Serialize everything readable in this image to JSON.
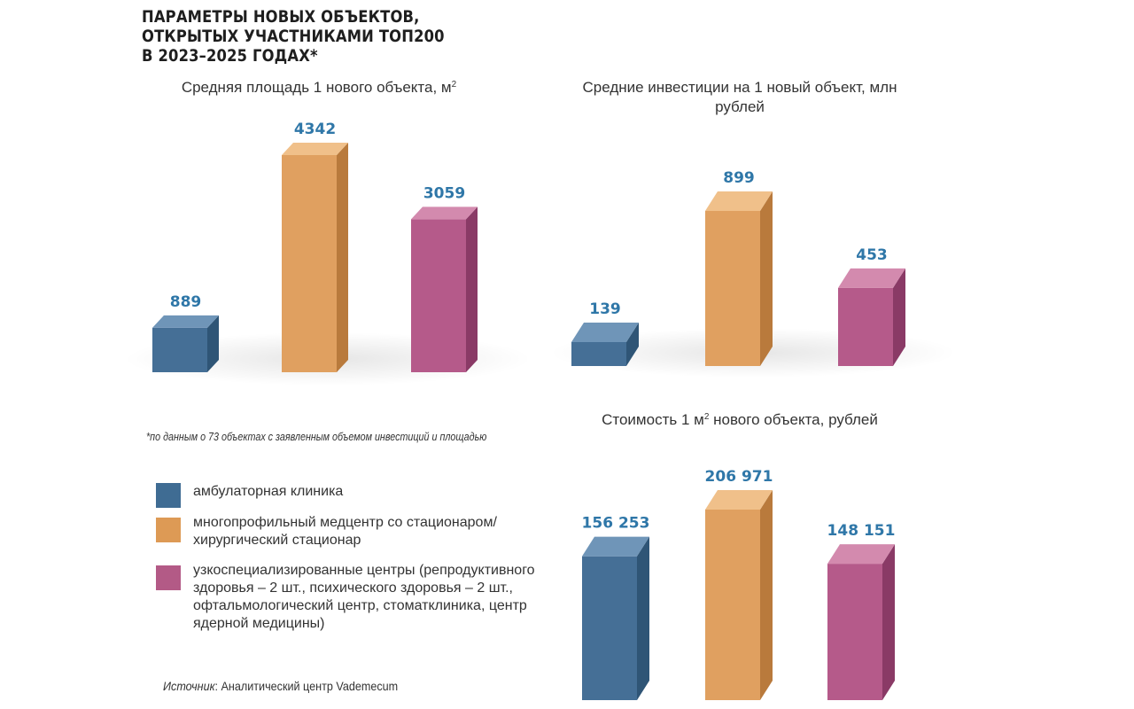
{
  "title_lines": [
    "ПАРАМЕТРЫ НОВЫХ ОБЪЕКТОВ,",
    "ОТКРЫТЫХ УЧАСТНИКАМИ ТОП200",
    "В 2023–2025 ГОДАХ*"
  ],
  "footnote": "*по данным о 73 объектах с заявленным объемом инвестиций и площадью",
  "source": {
    "label": "Источник",
    "text": ": Аналитический центр Vademecum"
  },
  "legend": [
    {
      "label": "амбулаторная клиника",
      "color": "#3f6c93"
    },
    {
      "label": "многопрофильный медцентр со стационаром/ хирургический стационар",
      "color": "#dd9a55"
    },
    {
      "label": "узкоспециализированные центры (репродуктивного здоровья – 2 шт., психического здоровья – 2 шт., офтальмологический центр, стоматклиника, центр ядерной медицины)",
      "color": "#b35a86"
    }
  ],
  "colors": {
    "ambulatory": {
      "front": "#456f96",
      "side": "#2f5576",
      "top": "#6f95b8"
    },
    "multi": {
      "front": "#e0a060",
      "side": "#b97a3c",
      "top": "#f0c08a"
    },
    "special": {
      "front": "#b55a8a",
      "side": "#8a3a66",
      "top": "#d38aae"
    }
  },
  "chart_data": [
    {
      "type": "bar",
      "title": "Средняя площадь 1 нового объекта, м",
      "title_sup": "2",
      "categories": [
        "амбулаторная клиника",
        "многопрофильный медцентр со стационаром/ хирургический стационар",
        "узкоспециализированные центры"
      ],
      "values": [
        889,
        4342,
        3059
      ],
      "value_labels": [
        "889",
        "4342",
        "3059"
      ]
    },
    {
      "type": "bar",
      "title": "Средние инвестиции на 1 новый объект, млн рублей",
      "title_sup": "",
      "categories": [
        "амбулаторная клиника",
        "многопрофильный медцентр со стационаром/ хирургический стационар",
        "узкоспециализированные центры"
      ],
      "values": [
        139,
        899,
        453
      ],
      "value_labels": [
        "139",
        "899",
        "453"
      ]
    },
    {
      "type": "bar",
      "title_parts": [
        "Стоимость 1 м",
        "2",
        " нового объекта, рублей"
      ],
      "categories": [
        "амбулаторная клиника",
        "многопрофильный медцентр со стационаром/ хирургический стационар",
        "узкоспециализированные центры"
      ],
      "values": [
        156253,
        206971,
        148151
      ],
      "value_labels": [
        "156 253",
        "206 971",
        "148 151"
      ]
    }
  ]
}
